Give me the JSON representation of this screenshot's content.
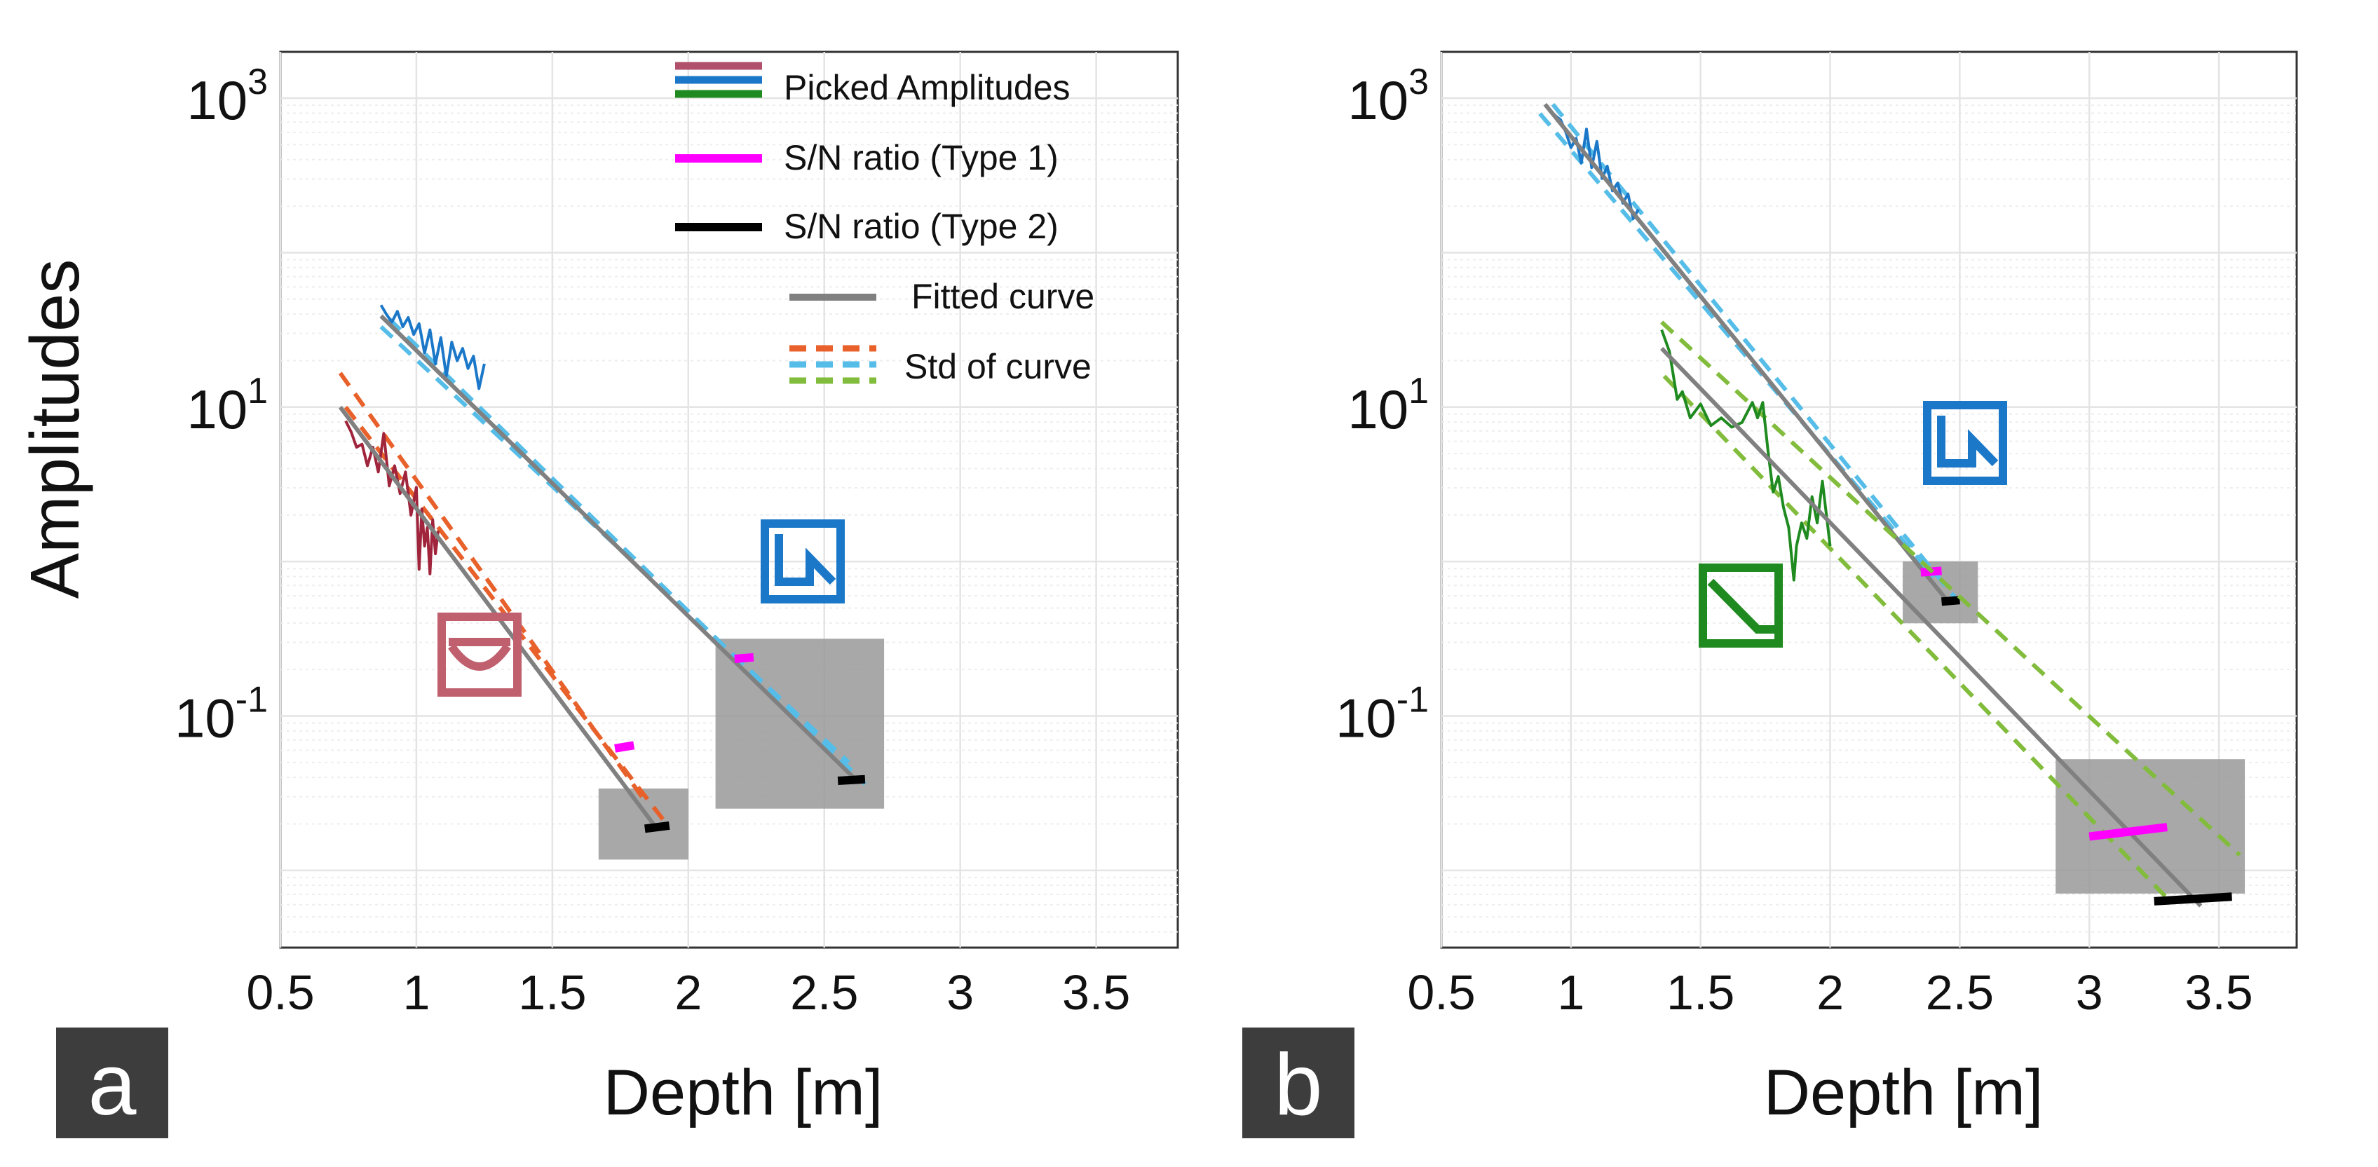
{
  "colors": {
    "grid": "#e4e4e4",
    "gridMinor": "#eeeeee",
    "axis": "#333333",
    "fitted": "#808080",
    "snr1": "#ff00ff",
    "snr2": "#000000",
    "box": "#999999",
    "panelLabelBg": "#3d3d3d",
    "panelLabelFg": "#ffffff",
    "red": "#a0243b",
    "blue": "#1b78c8",
    "green": "#1f8a1f",
    "orangeStd": "#e8602a",
    "lightBlueStd": "#55bde8",
    "greenStd": "#82bc3c",
    "redIcon": "#c0606e",
    "legendRed": "#b0506a"
  },
  "legend": {
    "picked": "Picked Amplitudes",
    "snr1": "S/N ratio (Type 1)",
    "snr2": "S/N ratio (Type 2)",
    "fitted": "Fitted curve",
    "std": "Std of curve"
  },
  "chart_data": [
    {
      "panel": "a",
      "type": "line",
      "xlabel": "Depth [m]",
      "ylabel": "Amplitudes",
      "xlim": [
        0.5,
        3.8
      ],
      "ylim_log10": [
        -2.5,
        3.3
      ],
      "yscale": "log",
      "xticks": [
        0.5,
        1,
        1.5,
        2,
        2.5,
        3,
        3.5
      ],
      "xticklabels": [
        "0.5",
        "1",
        "1.5",
        "2",
        "2.5",
        "3",
        "3.5"
      ],
      "yticklabels": [
        {
          "base": "10",
          "exp": "3"
        },
        {
          "base": "10",
          "exp": "1"
        },
        {
          "base": "10",
          "exp": "-1"
        }
      ],
      "yticks_log10": [
        3,
        1,
        -1
      ],
      "series": [
        {
          "name": "Picked Amplitudes (red)",
          "color_key": "red",
          "points": [
            [
              0.74,
              0.91
            ],
            [
              0.76,
              0.84
            ],
            [
              0.78,
              0.74
            ],
            [
              0.8,
              0.76
            ],
            [
              0.82,
              0.62
            ],
            [
              0.84,
              0.74
            ],
            [
              0.86,
              0.58
            ],
            [
              0.88,
              0.83
            ],
            [
              0.9,
              0.49
            ],
            [
              0.92,
              0.62
            ],
            [
              0.94,
              0.44
            ],
            [
              0.96,
              0.58
            ],
            [
              0.98,
              0.3
            ],
            [
              1.0,
              0.48
            ],
            [
              1.01,
              -0.05
            ],
            [
              1.02,
              0.34
            ],
            [
              1.03,
              0.1
            ],
            [
              1.04,
              0.22
            ],
            [
              1.05,
              -0.08
            ],
            [
              1.06,
              0.27
            ],
            [
              1.07,
              0.05
            ],
            [
              1.08,
              0.2
            ]
          ],
          "fit": [
            [
              0.72,
              1.0
            ],
            [
              1.88,
              -1.72
            ]
          ],
          "std_color_key": "orangeStd",
          "std_upper": [
            [
              0.72,
              1.22
            ],
            [
              1.84,
              -1.55
            ]
          ],
          "std_lower": [
            [
              0.74,
              1.0
            ],
            [
              1.92,
              -1.7
            ]
          ],
          "snr1": [
            [
              1.73,
              -1.21
            ],
            [
              1.8,
              -1.19
            ]
          ],
          "snr2": [
            [
              1.84,
              -1.73
            ],
            [
              1.93,
              -1.71
            ]
          ],
          "box_x": [
            1.67,
            2.0
          ],
          "box_y_log10": [
            -1.47,
            -1.93
          ]
        },
        {
          "name": "Picked Amplitudes (blue)",
          "color_key": "blue",
          "points": [
            [
              0.87,
              1.66
            ],
            [
              0.89,
              1.6
            ],
            [
              0.91,
              1.55
            ],
            [
              0.93,
              1.62
            ],
            [
              0.95,
              1.52
            ],
            [
              0.97,
              1.58
            ],
            [
              0.99,
              1.47
            ],
            [
              1.01,
              1.54
            ],
            [
              1.03,
              1.35
            ],
            [
              1.05,
              1.5
            ],
            [
              1.07,
              1.28
            ],
            [
              1.09,
              1.45
            ],
            [
              1.11,
              1.2
            ],
            [
              1.13,
              1.42
            ],
            [
              1.15,
              1.3
            ],
            [
              1.17,
              1.38
            ],
            [
              1.19,
              1.25
            ],
            [
              1.21,
              1.33
            ],
            [
              1.23,
              1.12
            ],
            [
              1.25,
              1.28
            ]
          ],
          "fit": [
            [
              0.87,
              1.59
            ],
            [
              2.62,
              -1.42
            ]
          ],
          "std_color_key": "lightBlueStd",
          "std_upper": [
            [
              0.87,
              1.52
            ],
            [
              2.59,
              -1.3
            ]
          ],
          "std_lower": [
            [
              0.9,
              1.57
            ],
            [
              2.65,
              -1.44
            ]
          ],
          "snr1": [
            [
              2.17,
              -0.63
            ],
            [
              2.24,
              -0.62
            ]
          ],
          "snr2": [
            [
              2.55,
              -1.42
            ],
            [
              2.65,
              -1.41
            ]
          ],
          "box_x": [
            2.1,
            2.72
          ],
          "box_y_log10": [
            -0.5,
            -1.6
          ]
        }
      ]
    },
    {
      "panel": "b",
      "type": "line",
      "xlabel": "Depth [m]",
      "ylabel": "",
      "xlim": [
        0.5,
        3.8
      ],
      "ylim_log10": [
        -2.5,
        3.3
      ],
      "yscale": "log",
      "xticks": [
        0.5,
        1,
        1.5,
        2,
        2.5,
        3,
        3.5
      ],
      "xticklabels": [
        "0.5",
        "1",
        "1.5",
        "2",
        "2.5",
        "3",
        "3.5"
      ],
      "yticklabels": [
        {
          "base": "10",
          "exp": "3"
        },
        {
          "base": "10",
          "exp": "1"
        },
        {
          "base": "10",
          "exp": "-1"
        }
      ],
      "yticks_log10": [
        3,
        1,
        -1
      ],
      "series": [
        {
          "name": "Picked Amplitudes (blue)",
          "color_key": "blue",
          "points": [
            [
              0.9,
              2.96
            ],
            [
              0.93,
              2.9
            ],
            [
              0.96,
              2.86
            ],
            [
              0.98,
              2.78
            ],
            [
              1.0,
              2.68
            ],
            [
              1.02,
              2.74
            ],
            [
              1.04,
              2.58
            ],
            [
              1.06,
              2.8
            ],
            [
              1.08,
              2.55
            ],
            [
              1.1,
              2.72
            ],
            [
              1.12,
              2.48
            ],
            [
              1.14,
              2.56
            ],
            [
              1.16,
              2.4
            ],
            [
              1.18,
              2.45
            ],
            [
              1.2,
              2.32
            ],
            [
              1.22,
              2.38
            ],
            [
              1.24,
              2.22
            ],
            [
              1.26,
              2.28
            ]
          ],
          "fit": [
            [
              0.9,
              2.96
            ],
            [
              2.45,
              -0.25
            ]
          ],
          "std_color_key": "lightBlueStd",
          "std_upper": [
            [
              0.88,
              2.9
            ],
            [
              2.4,
              -0.1
            ]
          ],
          "std_lower": [
            [
              0.93,
              2.96
            ],
            [
              2.48,
              -0.23
            ]
          ],
          "snr1": [
            [
              2.35,
              -0.07
            ],
            [
              2.43,
              -0.06
            ]
          ],
          "snr2": [
            [
              2.43,
              -0.26
            ],
            [
              2.5,
              -0.25
            ]
          ],
          "box_x": [
            2.28,
            2.57
          ],
          "box_y_log10": [
            0.0,
            -0.4
          ]
        },
        {
          "name": "Picked Amplitudes (green)",
          "color_key": "green",
          "points": [
            [
              1.35,
              1.5
            ],
            [
              1.38,
              1.36
            ],
            [
              1.41,
              1.05
            ],
            [
              1.43,
              1.1
            ],
            [
              1.46,
              0.93
            ],
            [
              1.5,
              1.02
            ],
            [
              1.54,
              0.88
            ],
            [
              1.58,
              0.93
            ],
            [
              1.62,
              0.87
            ],
            [
              1.66,
              0.9
            ],
            [
              1.7,
              1.03
            ],
            [
              1.72,
              0.93
            ],
            [
              1.74,
              1.03
            ],
            [
              1.76,
              0.72
            ],
            [
              1.78,
              0.45
            ],
            [
              1.8,
              0.55
            ],
            [
              1.82,
              0.35
            ],
            [
              1.84,
              0.22
            ],
            [
              1.86,
              -0.12
            ],
            [
              1.87,
              0.1
            ],
            [
              1.89,
              0.25
            ],
            [
              1.91,
              0.15
            ],
            [
              1.93,
              0.42
            ],
            [
              1.95,
              0.25
            ],
            [
              1.97,
              0.52
            ],
            [
              2.0,
              0.1
            ]
          ],
          "fit": [
            [
              1.35,
              1.38
            ],
            [
              3.43,
              -2.23
            ]
          ],
          "std_color_key": "greenStd",
          "std_upper": [
            [
              1.35,
              1.55
            ],
            [
              3.58,
              -1.9
            ]
          ],
          "std_lower": [
            [
              1.36,
              1.2
            ],
            [
              3.3,
              -2.18
            ]
          ],
          "snr1": [
            [
              3.0,
              -1.78
            ],
            [
              3.3,
              -1.72
            ]
          ],
          "snr2": [
            [
              3.25,
              -2.2
            ],
            [
              3.55,
              -2.17
            ]
          ],
          "box_x": [
            2.87,
            3.6
          ],
          "box_y_log10": [
            -1.28,
            -2.15
          ]
        }
      ]
    }
  ]
}
